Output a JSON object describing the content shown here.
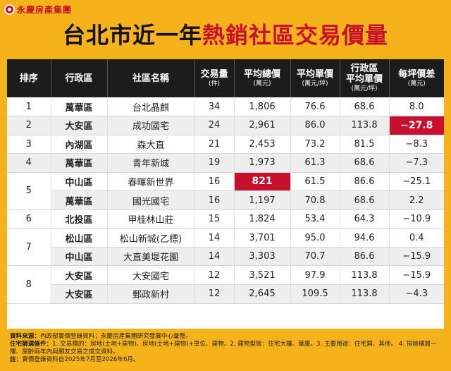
{
  "brand": {
    "name": "永慶房產集團",
    "logo_icon": "yungching-logo-icon"
  },
  "title": {
    "part1": "台北市近一年",
    "part2": "熱銷社區交易價量"
  },
  "colors": {
    "background": "#f6b21b",
    "accent": "#c8102e",
    "header": "#1c1c1c"
  },
  "table": {
    "headers": [
      {
        "label": "排序",
        "unit": ""
      },
      {
        "label": "行政區",
        "unit": ""
      },
      {
        "label": "社區名稱",
        "unit": ""
      },
      {
        "label": "交易量",
        "unit": "(件)"
      },
      {
        "label": "平均總價",
        "unit": "(萬元)"
      },
      {
        "label": "平均單價",
        "unit": "(萬元/坪)"
      },
      {
        "label": "行政區\n平均單價",
        "unit": "(萬元/坪)"
      },
      {
        "label": "每坪價差",
        "unit": "(萬元)"
      }
    ],
    "rows": [
      {
        "rank": "1",
        "district": "萬華區",
        "community": "台北晶麒",
        "volume": "34",
        "avg_total": "1,806",
        "avg_unit": "76.6",
        "district_avg": "68.6",
        "diff": "8.0"
      },
      {
        "rank": "2",
        "district": "大安區",
        "community": "成功國宅",
        "volume": "24",
        "avg_total": "2,961",
        "avg_unit": "86.0",
        "district_avg": "113.8",
        "diff": "−27.8"
      },
      {
        "rank": "3",
        "district": "內湖區",
        "community": "森大直",
        "volume": "21",
        "avg_total": "2,453",
        "avg_unit": "73.2",
        "district_avg": "81.5",
        "diff": "−8.3"
      },
      {
        "rank": "4",
        "district": "萬華區",
        "community": "青年新城",
        "volume": "19",
        "avg_total": "1,973",
        "avg_unit": "61.3",
        "district_avg": "68.6",
        "diff": "−7.3"
      },
      {
        "rank": "5",
        "district": "中山區",
        "community": "春暉新世界",
        "volume": "16",
        "avg_total": "821",
        "avg_unit": "61.5",
        "district_avg": "86.6",
        "diff": "−25.1"
      },
      {
        "rank": "",
        "district": "萬華區",
        "community": "國光國宅",
        "volume": "16",
        "avg_total": "1,197",
        "avg_unit": "70.8",
        "district_avg": "68.6",
        "diff": "2.2"
      },
      {
        "rank": "6",
        "district": "北投區",
        "community": "甲桂林山莊",
        "volume": "15",
        "avg_total": "1,824",
        "avg_unit": "53.4",
        "district_avg": "64.3",
        "diff": "−10.9"
      },
      {
        "rank": "7",
        "district": "松山區",
        "community": "松山新城(乙標)",
        "volume": "14",
        "avg_total": "3,701",
        "avg_unit": "95.0",
        "district_avg": "94.6",
        "diff": "0.4"
      },
      {
        "rank": "",
        "district": "中山區",
        "community": "大直美堤花園",
        "volume": "14",
        "avg_total": "3,303",
        "avg_unit": "70.7",
        "district_avg": "86.6",
        "diff": "−15.9"
      },
      {
        "rank": "8",
        "district": "大安區",
        "community": "大安國宅",
        "volume": "12",
        "avg_total": "3,521",
        "avg_unit": "97.9",
        "district_avg": "113.8",
        "diff": "−15.9"
      },
      {
        "rank": "",
        "district": "大安區",
        "community": "郵政新村",
        "volume": "12",
        "avg_total": "2,645",
        "avg_unit": "109.5",
        "district_avg": "113.8",
        "diff": "−4.3"
      }
    ]
  },
  "notes": {
    "source_label": "資料來源：",
    "source_text": "內政部實價登錄資料；永慶房產集團研究發展中心彙整。",
    "criteria_label": "住宅篩選條件：",
    "criteria_text": "1. 交易標的：房地(土地+建物)、房地(土地+建物)+車位、建物。2. 建物型態：住宅大樓、華廈。3. 主要用途：住宅類、其他。 4. 排除樓層一樓、屋齡兩年內與親友交易之成交資料。",
    "note_label": "註：",
    "note_text": "實價登錄資料自2025年7月至2026年6月。"
  }
}
